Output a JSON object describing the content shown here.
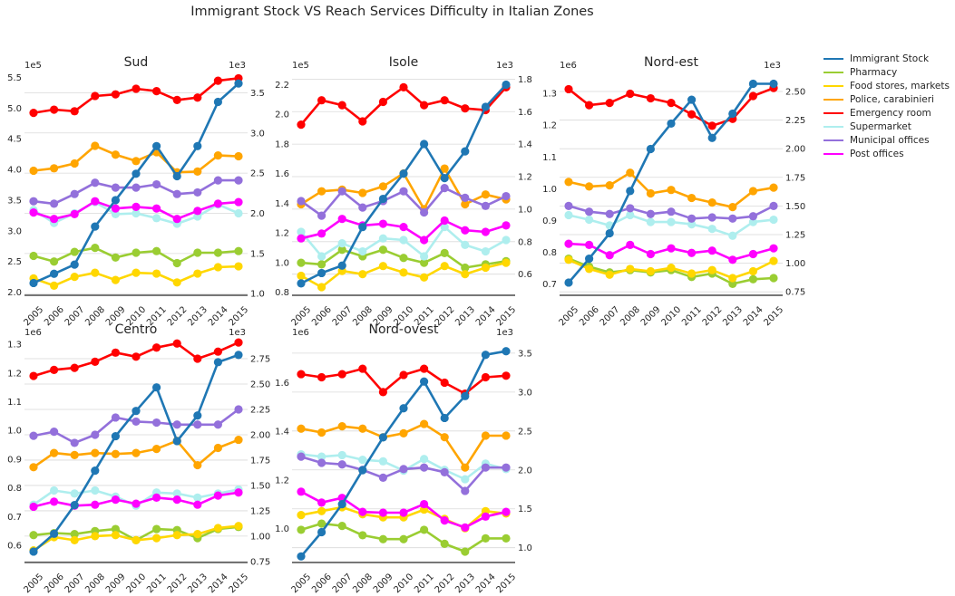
{
  "figure": {
    "suptitle": "Immigrant Stock VS Reach Services Difficulty in Italian Zones"
  },
  "series_colors": {
    "Immigrant Stock": "#1f77b4",
    "Pharmacy": "#9acd32",
    "Food stores, markets": "#ffd700",
    "Police, carabinieri": "#ffa500",
    "Emergency room": "#ff0000",
    "Supermarket": "#aeeeee",
    "Municipal offices": "#9370db",
    "Post offices": "#ff00ff"
  },
  "chart_data": [
    {
      "type": "line",
      "title": "Sud",
      "x": [
        "2005",
        "2006",
        "2007",
        "2008",
        "2009",
        "2010",
        "2011",
        "2012",
        "2013",
        "2014",
        "2015"
      ],
      "left_axis": {
        "ylim": [
          1.95,
          5.55
        ],
        "ticks": [
          2.0,
          2.5,
          3.0,
          3.5,
          4.0,
          4.5,
          5.0,
          5.5
        ],
        "tick_labels": [
          "2.0",
          "2.5",
          "3.0",
          "3.5",
          "4.0",
          "4.5",
          "5.0",
          "5.5"
        ],
        "offset_label": "1e5"
      },
      "right_axis": {
        "ylim": [
          0.98,
          3.73
        ],
        "ticks": [
          1.0,
          1.5,
          2.0,
          2.5,
          3.0,
          3.5
        ],
        "tick_labels": [
          "1.0",
          "1.5",
          "2.0",
          "2.5",
          "3.0",
          "3.5"
        ],
        "offset_label": "1e3"
      },
      "left_series": [
        {
          "name": "Immigrant Stock",
          "values": [
            2.15,
            2.3,
            2.45,
            3.07,
            3.5,
            3.93,
            4.38,
            3.89,
            4.38,
            5.1,
            5.4
          ]
        }
      ],
      "right_series": [
        {
          "name": "Pharmacy",
          "values": [
            1.47,
            1.4,
            1.52,
            1.57,
            1.45,
            1.51,
            1.53,
            1.38,
            1.51,
            1.51,
            1.53
          ]
        },
        {
          "name": "Food stores, markets",
          "values": [
            1.19,
            1.1,
            1.21,
            1.26,
            1.17,
            1.26,
            1.25,
            1.14,
            1.25,
            1.33,
            1.34
          ]
        },
        {
          "name": "Police, carabinieri",
          "values": [
            2.53,
            2.56,
            2.62,
            2.84,
            2.73,
            2.65,
            2.76,
            2.51,
            2.52,
            2.72,
            2.71
          ]
        },
        {
          "name": "Emergency room",
          "values": [
            3.25,
            3.29,
            3.27,
            3.46,
            3.48,
            3.55,
            3.52,
            3.41,
            3.44,
            3.65,
            3.68
          ]
        },
        {
          "name": "Supermarket",
          "values": [
            2.04,
            1.88,
            2.0,
            2.14,
            1.99,
            2.0,
            1.94,
            1.87,
            1.96,
            2.11,
            2.0
          ]
        },
        {
          "name": "Municipal offices",
          "values": [
            2.15,
            2.12,
            2.24,
            2.38,
            2.32,
            2.32,
            2.36,
            2.24,
            2.26,
            2.41,
            2.41
          ]
        },
        {
          "name": "Post offices",
          "values": [
            2.01,
            1.93,
            1.99,
            2.15,
            2.06,
            2.08,
            2.06,
            1.93,
            2.03,
            2.12,
            2.14
          ]
        }
      ]
    },
    {
      "type": "line",
      "title": "Isole",
      "x": [
        "2005",
        "2006",
        "2007",
        "2008",
        "2009",
        "2010",
        "2011",
        "2012",
        "2013",
        "2014",
        "2015"
      ],
      "left_axis": {
        "ylim": [
          0.78,
          2.27
        ],
        "ticks": [
          0.8,
          1.0,
          1.2,
          1.4,
          1.6,
          1.8,
          2.0,
          2.2
        ],
        "tick_labels": [
          "0.8",
          "1.0",
          "1.2",
          "1.4",
          "1.6",
          "1.8",
          "2.0",
          "2.2"
        ],
        "offset_label": "1e5"
      },
      "right_axis": {
        "ylim": [
          0.47,
          1.83
        ],
        "ticks": [
          0.6,
          0.8,
          1.0,
          1.2,
          1.4,
          1.6,
          1.8
        ],
        "tick_labels": [
          "0.6",
          "0.8",
          "1.0",
          "1.2",
          "1.4",
          "1.6",
          "1.8"
        ],
        "offset_label": "1e3"
      },
      "left_series": [
        {
          "name": "Immigrant Stock",
          "values": [
            0.86,
            0.93,
            0.98,
            1.24,
            1.43,
            1.6,
            1.8,
            1.57,
            1.75,
            2.05,
            2.2
          ]
        }
      ],
      "right_series": [
        {
          "name": "Pharmacy",
          "values": [
            0.67,
            0.66,
            0.75,
            0.71,
            0.75,
            0.7,
            0.67,
            0.73,
            0.64,
            0.66,
            0.68
          ]
        },
        {
          "name": "Food stores, markets",
          "values": [
            0.59,
            0.52,
            0.62,
            0.6,
            0.65,
            0.61,
            0.58,
            0.65,
            0.6,
            0.64,
            0.67
          ]
        },
        {
          "name": "Police, carabinieri",
          "values": [
            1.03,
            1.11,
            1.12,
            1.1,
            1.14,
            1.22,
            1.0,
            1.25,
            1.03,
            1.09,
            1.06
          ]
        },
        {
          "name": "Emergency room",
          "values": [
            1.52,
            1.67,
            1.64,
            1.54,
            1.66,
            1.75,
            1.64,
            1.67,
            1.62,
            1.61,
            1.75
          ]
        },
        {
          "name": "Supermarket",
          "values": [
            0.86,
            0.71,
            0.79,
            0.74,
            0.82,
            0.81,
            0.71,
            0.89,
            0.78,
            0.74,
            0.81
          ]
        },
        {
          "name": "Municipal offices",
          "values": [
            1.05,
            0.96,
            1.11,
            1.01,
            1.05,
            1.11,
            0.98,
            1.13,
            1.07,
            1.02,
            1.08
          ]
        },
        {
          "name": "Post offices",
          "values": [
            0.82,
            0.85,
            0.94,
            0.9,
            0.91,
            0.89,
            0.81,
            0.93,
            0.87,
            0.86,
            0.9
          ]
        }
      ]
    },
    {
      "type": "line",
      "title": "Nord-est",
      "x": [
        "2005",
        "2006",
        "2007",
        "2008",
        "2009",
        "2010",
        "2011",
        "2012",
        "2013",
        "2014",
        "2015"
      ],
      "left_axis": {
        "ylim": [
          0.665,
          1.36
        ],
        "ticks": [
          0.7,
          0.8,
          0.9,
          1.0,
          1.1,
          1.2,
          1.3
        ],
        "tick_labels": [
          "0.7",
          "0.8",
          "0.9",
          "1.0",
          "1.1",
          "1.2",
          "1.3"
        ],
        "offset_label": "1e6"
      },
      "right_axis": {
        "ylim": [
          0.72,
          2.65
        ],
        "ticks": [
          0.75,
          1.0,
          1.25,
          1.5,
          1.75,
          2.0,
          2.25,
          2.5
        ],
        "tick_labels": [
          "0.75",
          "1.00",
          "1.25",
          "1.50",
          "1.75",
          "2.00",
          "2.25",
          "2.50"
        ],
        "offset_label": "1e3"
      },
      "left_series": [
        {
          "name": "Immigrant Stock",
          "values": [
            0.705,
            0.78,
            0.86,
            0.993,
            1.125,
            1.205,
            1.28,
            1.16,
            1.236,
            1.33,
            1.33
          ]
        }
      ],
      "right_series": [
        {
          "name": "Pharmacy",
          "values": [
            1.04,
            0.97,
            0.92,
            0.94,
            0.92,
            0.94,
            0.88,
            0.91,
            0.82,
            0.86,
            0.87
          ]
        },
        {
          "name": "Food stores, markets",
          "values": [
            1.03,
            0.95,
            0.9,
            0.95,
            0.93,
            0.96,
            0.91,
            0.94,
            0.87,
            0.93,
            1.02
          ]
        },
        {
          "name": "Police, carabinieri",
          "values": [
            1.71,
            1.67,
            1.68,
            1.79,
            1.61,
            1.64,
            1.57,
            1.53,
            1.49,
            1.63,
            1.66
          ]
        },
        {
          "name": "Emergency room",
          "values": [
            2.52,
            2.38,
            2.4,
            2.48,
            2.44,
            2.4,
            2.3,
            2.2,
            2.26,
            2.46,
            2.53
          ]
        },
        {
          "name": "Supermarket",
          "values": [
            1.42,
            1.38,
            1.33,
            1.42,
            1.36,
            1.36,
            1.34,
            1.3,
            1.24,
            1.36,
            1.38
          ]
        },
        {
          "name": "Municipal offices",
          "values": [
            1.5,
            1.45,
            1.43,
            1.48,
            1.43,
            1.45,
            1.39,
            1.4,
            1.39,
            1.41,
            1.5
          ]
        },
        {
          "name": "Post offices",
          "values": [
            1.17,
            1.16,
            1.07,
            1.16,
            1.08,
            1.13,
            1.09,
            1.11,
            1.03,
            1.08,
            1.13
          ]
        }
      ]
    },
    {
      "type": "line",
      "title": "Centro",
      "x": [
        "2005",
        "2006",
        "2007",
        "2008",
        "2009",
        "2010",
        "2011",
        "2012",
        "2013",
        "2014",
        "2015"
      ],
      "left_axis": {
        "ylim": [
          0.54,
          1.31
        ],
        "ticks": [
          0.6,
          0.7,
          0.8,
          0.9,
          1.0,
          1.1,
          1.2,
          1.3
        ],
        "tick_labels": [
          "0.6",
          "0.7",
          "0.8",
          "0.9",
          "1.0",
          "1.1",
          "1.2",
          "1.3"
        ],
        "offset_label": "1e6"
      },
      "right_axis": {
        "ylim": [
          0.74,
          2.92
        ],
        "ticks": [
          0.75,
          1.0,
          1.25,
          1.5,
          1.75,
          2.0,
          2.25,
          2.5,
          2.75
        ],
        "tick_labels": [
          "0.75",
          "1.00",
          "1.25",
          "1.50",
          "1.75",
          "2.00",
          "2.25",
          "2.50",
          "2.75"
        ],
        "offset_label": "1e3"
      },
      "left_series": [
        {
          "name": "Immigrant Stock",
          "values": [
            0.578,
            0.64,
            0.74,
            0.86,
            0.98,
            1.068,
            1.15,
            0.963,
            1.052,
            1.238,
            1.263
          ]
        }
      ],
      "right_series": [
        {
          "name": "Pharmacy",
          "values": [
            1.01,
            1.03,
            1.02,
            1.05,
            1.07,
            0.96,
            1.07,
            1.06,
            0.98,
            1.07,
            1.09
          ]
        },
        {
          "name": "Food stores, markets",
          "values": [
            0.86,
            0.99,
            0.96,
            1.0,
            1.01,
            0.96,
            0.98,
            1.01,
            1.02,
            1.08,
            1.1
          ]
        },
        {
          "name": "Police, carabinieri",
          "values": [
            1.68,
            1.82,
            1.8,
            1.82,
            1.81,
            1.82,
            1.86,
            1.94,
            1.7,
            1.87,
            1.95
          ]
        },
        {
          "name": "Emergency room",
          "values": [
            2.58,
            2.64,
            2.66,
            2.72,
            2.81,
            2.77,
            2.86,
            2.9,
            2.75,
            2.82,
            2.91
          ]
        },
        {
          "name": "Supermarket",
          "values": [
            1.31,
            1.45,
            1.42,
            1.45,
            1.39,
            1.3,
            1.43,
            1.42,
            1.38,
            1.42,
            1.46
          ]
        },
        {
          "name": "Municipal offices",
          "values": [
            1.99,
            2.03,
            1.92,
            2.0,
            2.17,
            2.13,
            2.12,
            2.1,
            2.1,
            2.1,
            2.25
          ]
        },
        {
          "name": "Post offices",
          "values": [
            1.29,
            1.34,
            1.3,
            1.31,
            1.36,
            1.32,
            1.38,
            1.36,
            1.31,
            1.4,
            1.43
          ]
        }
      ]
    },
    {
      "type": "line",
      "title": "Nord-ovest",
      "x": [
        "2005",
        "2006",
        "2007",
        "2008",
        "2009",
        "2010",
        "2011",
        "2012",
        "2013",
        "2014",
        "2015"
      ],
      "left_axis": {
        "ylim": [
          0.86,
          1.77
        ],
        "ticks": [
          1.0,
          1.2,
          1.4,
          1.6
        ],
        "tick_labels": [
          "1.0",
          "1.2",
          "1.4",
          "1.6"
        ],
        "offset_label": "1e6"
      },
      "right_axis": {
        "ylim": [
          0.81,
          3.65
        ],
        "ticks": [
          1.0,
          1.5,
          2.0,
          2.5,
          3.0,
          3.5
        ],
        "tick_labels": [
          "1.0",
          "1.5",
          "2.0",
          "2.5",
          "3.0",
          "3.5"
        ],
        "offset_label": "1e3"
      },
      "left_series": [
        {
          "name": "Immigrant Stock",
          "values": [
            0.885,
            0.985,
            1.1,
            1.24,
            1.375,
            1.495,
            1.605,
            1.455,
            1.545,
            1.715,
            1.73
          ]
        }
      ],
      "right_series": [
        {
          "name": "Pharmacy",
          "values": [
            1.23,
            1.31,
            1.28,
            1.16,
            1.11,
            1.11,
            1.23,
            1.05,
            0.95,
            1.12,
            1.12
          ]
        },
        {
          "name": "Food stores, markets",
          "values": [
            1.42,
            1.47,
            1.52,
            1.43,
            1.39,
            1.39,
            1.49,
            1.37,
            1.25,
            1.47,
            1.44
          ]
        },
        {
          "name": "Police, carabinieri",
          "values": [
            2.53,
            2.48,
            2.56,
            2.53,
            2.42,
            2.47,
            2.59,
            2.42,
            2.03,
            2.44,
            2.44
          ]
        },
        {
          "name": "Emergency room",
          "values": [
            3.23,
            3.19,
            3.23,
            3.3,
            3.0,
            3.22,
            3.3,
            3.12,
            2.98,
            3.19,
            3.21
          ]
        },
        {
          "name": "Supermarket",
          "values": [
            2.2,
            2.17,
            2.19,
            2.13,
            2.11,
            1.99,
            2.14,
            2.0,
            1.88,
            2.08,
            2.01
          ]
        },
        {
          "name": "Municipal offices",
          "values": [
            2.17,
            2.09,
            2.07,
            2.0,
            1.9,
            2.01,
            2.03,
            1.97,
            1.73,
            2.03,
            2.03
          ]
        },
        {
          "name": "Post offices",
          "values": [
            1.72,
            1.58,
            1.64,
            1.46,
            1.45,
            1.45,
            1.56,
            1.35,
            1.26,
            1.4,
            1.46
          ]
        }
      ]
    }
  ],
  "legend": {
    "placement": "right",
    "entries": [
      "Immigrant Stock",
      "Pharmacy",
      "Food stores, markets",
      "Police, carabinieri",
      "Emergency room",
      "Supermarket",
      "Municipal offices",
      "Post offices"
    ]
  }
}
